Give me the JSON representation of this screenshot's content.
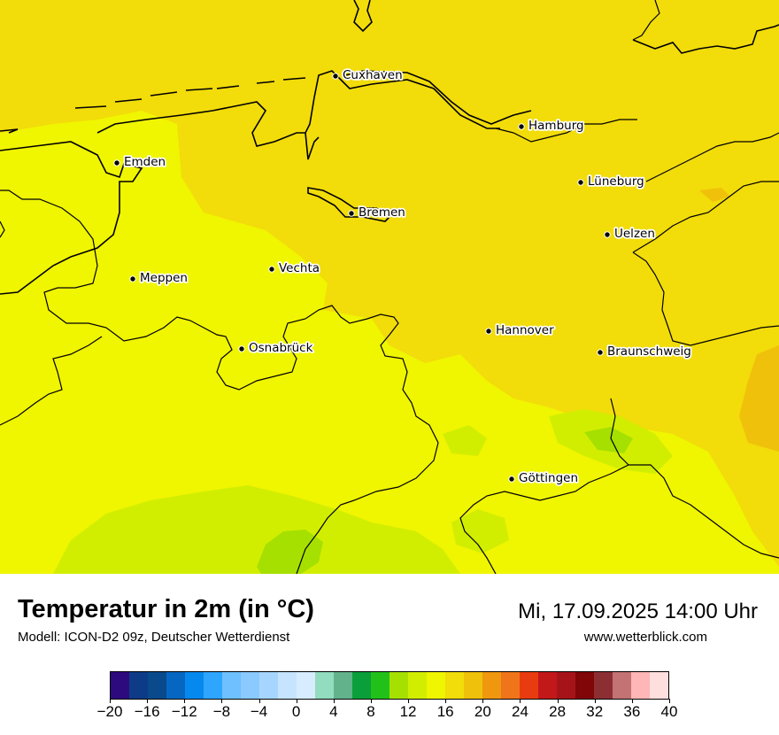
{
  "map": {
    "cities": [
      {
        "name": "Cuxhaven"
      },
      {
        "name": "Hamburg"
      },
      {
        "name": "Emden"
      },
      {
        "name": "Lüneburg"
      },
      {
        "name": "Bremen"
      },
      {
        "name": "Uelzen"
      },
      {
        "name": "Vechta"
      },
      {
        "name": "Meppen"
      },
      {
        "name": "Hannover"
      },
      {
        "name": "Osnabrück"
      },
      {
        "name": "Braunschweig"
      },
      {
        "name": "Göttingen"
      }
    ],
    "colors": {
      "t18_20": "#f2dc0a",
      "t16_18": "#f0f500",
      "t14_16": "#d2ee00",
      "t12_14": "#a6e000",
      "t20_22": "#f0c10a",
      "borders": "#000000"
    }
  },
  "footer": {
    "title": "Temperatur in 2m (in °C)",
    "subtitle": "Modell: ICON-D2 09z, Deutscher Wetterdienst",
    "datetime": "Mi, 17.09.2025 14:00 Uhr",
    "website": "www.wetterblick.com"
  },
  "legend": {
    "colors": [
      "#2e0a7f",
      "#0e3b87",
      "#084a8c",
      "#0667c2",
      "#0689ee",
      "#2ea5ff",
      "#6fc0ff",
      "#8acaff",
      "#a6d6ff",
      "#c6e4ff",
      "#d7ecff",
      "#92dcc0",
      "#62b38c",
      "#0b9f3b",
      "#22c11a",
      "#a6e000",
      "#d2ee00",
      "#f0f500",
      "#f2dc0a",
      "#f0c10a",
      "#f09710",
      "#f0741a",
      "#e83c10",
      "#c2181a",
      "#a6141a",
      "#800608",
      "#8c2f33",
      "#c47374",
      "#ffb6b6",
      "#ffdede"
    ],
    "ticks": [
      "−20",
      "−16",
      "−12",
      "−8",
      "−4",
      "0",
      "4",
      "8",
      "12",
      "16",
      "20",
      "24",
      "28",
      "32",
      "36",
      "40"
    ]
  }
}
